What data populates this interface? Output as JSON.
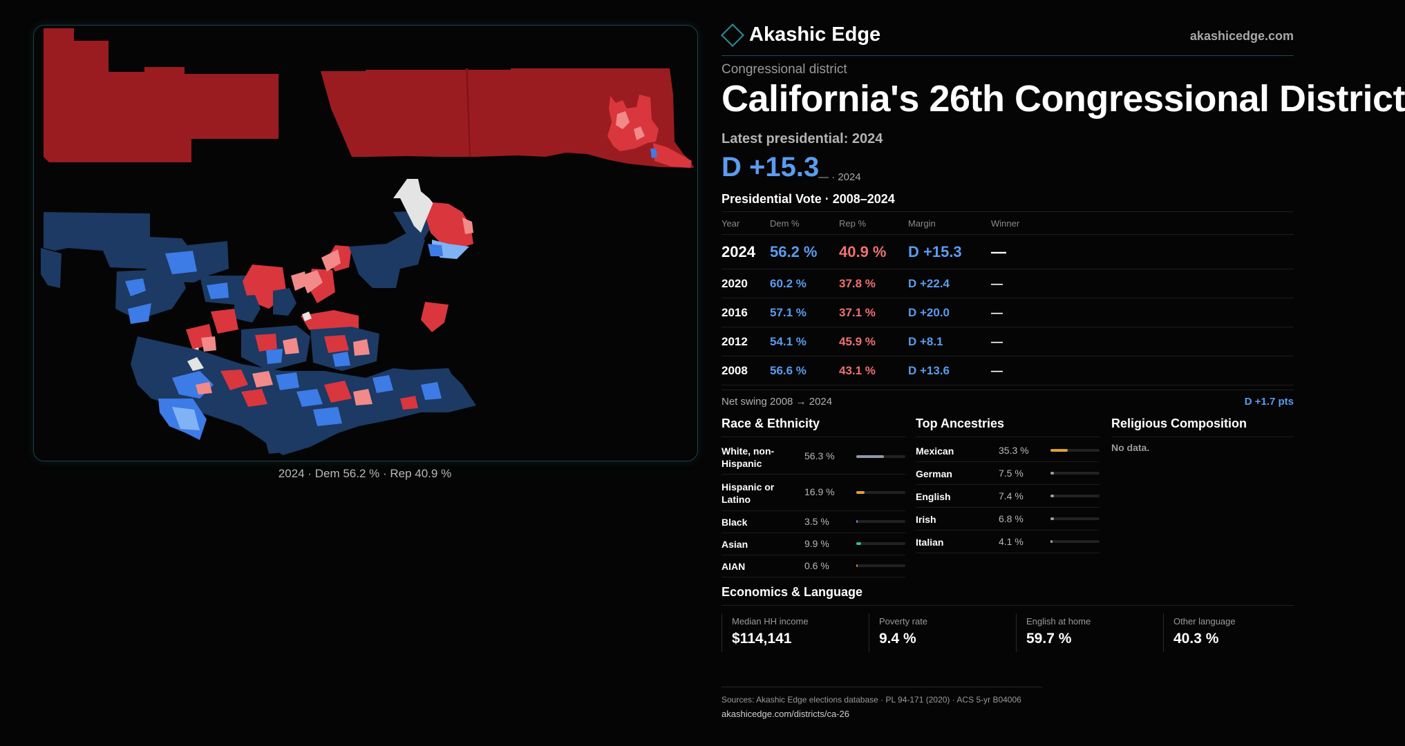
{
  "header": {
    "brand": "Akashic Edge",
    "site": "akashicedge.com"
  },
  "district": {
    "eyebrow": "Congressional district",
    "title": "California's 26th Congressional District",
    "latest_label": "Latest presidential: 2024",
    "margin": "D +15.3",
    "margin_sub": "— · 2024"
  },
  "map": {
    "caption": "2024 · Dem 56.2 % · Rep 40.9 %"
  },
  "presidential": {
    "heading": "Presidential Vote · 2008–2024",
    "columns": [
      "Year",
      "Dem %",
      "Rep %",
      "Margin",
      "Winner"
    ],
    "rows": [
      {
        "year": "2024",
        "dem": "56.2 %",
        "rep": "40.9 %",
        "margin": "D +15.3",
        "winner": "—"
      },
      {
        "year": "2020",
        "dem": "60.2 %",
        "rep": "37.8 %",
        "margin": "D +22.4",
        "winner": "—"
      },
      {
        "year": "2016",
        "dem": "57.1 %",
        "rep": "37.1 %",
        "margin": "D +20.0",
        "winner": "—"
      },
      {
        "year": "2012",
        "dem": "54.1 %",
        "rep": "45.9 %",
        "margin": "D +8.1",
        "winner": "—"
      },
      {
        "year": "2008",
        "dem": "56.6 %",
        "rep": "43.1 %",
        "margin": "D +13.6",
        "winner": "—"
      }
    ],
    "swing_label": "Net swing 2008 → 2024",
    "swing_value": "D +1.7 pts"
  },
  "race": {
    "heading": "Race & Ethnicity",
    "items": [
      {
        "label": "White, non-Hispanic",
        "value": "56.3 %",
        "pct": 56.3,
        "color": "#8f98a6"
      },
      {
        "label": "Hispanic or Latino",
        "value": "16.9 %",
        "pct": 16.9,
        "color": "#e0a030"
      },
      {
        "label": "Black",
        "value": "3.5 %",
        "pct": 3.5,
        "color": "#8a7ad8"
      },
      {
        "label": "Asian",
        "value": "9.9 %",
        "pct": 9.9,
        "color": "#2fbf8f"
      },
      {
        "label": "AIAN",
        "value": "0.6 %",
        "pct": 0.6,
        "color": "#d07a3a"
      }
    ]
  },
  "ancestry": {
    "heading": "Top Ancestries",
    "items": [
      {
        "label": "Mexican",
        "value": "35.3 %",
        "pct": 35.3,
        "color": "#e0a030"
      },
      {
        "label": "German",
        "value": "7.5 %",
        "pct": 7.5,
        "color": "#9aa0a8"
      },
      {
        "label": "English",
        "value": "7.4 %",
        "pct": 7.4,
        "color": "#9aa0a8"
      },
      {
        "label": "Irish",
        "value": "6.8 %",
        "pct": 6.8,
        "color": "#9aa0a8"
      },
      {
        "label": "Italian",
        "value": "4.1 %",
        "pct": 4.1,
        "color": "#9aa0a8"
      }
    ]
  },
  "religion": {
    "heading": "Religious Composition",
    "empty": "No data."
  },
  "economics": {
    "heading": "Economics & Language",
    "items": [
      {
        "label": "Median HH income",
        "value": "$114,141"
      },
      {
        "label": "Poverty rate",
        "value": "9.4 %"
      },
      {
        "label": "English at home",
        "value": "59.7 %"
      },
      {
        "label": "Other language",
        "value": "40.3 %"
      }
    ]
  },
  "footer": {
    "sources": "Sources: Akashic Edge elections database · PL 94-171 (2020) · ACS 5-yr B04006",
    "url": "akashicedge.com/districts/ca-26"
  },
  "colors": {
    "dem": "#5a9cf0",
    "rep": "#f07074",
    "map_safe_r": "#9b1c20",
    "map_lean_r": "#d9363d",
    "map_light_r": "#f28a8a",
    "map_safe_d": "#1c3a63",
    "map_lean_d": "#3d7be6",
    "map_light_d": "#7fb3f3"
  }
}
